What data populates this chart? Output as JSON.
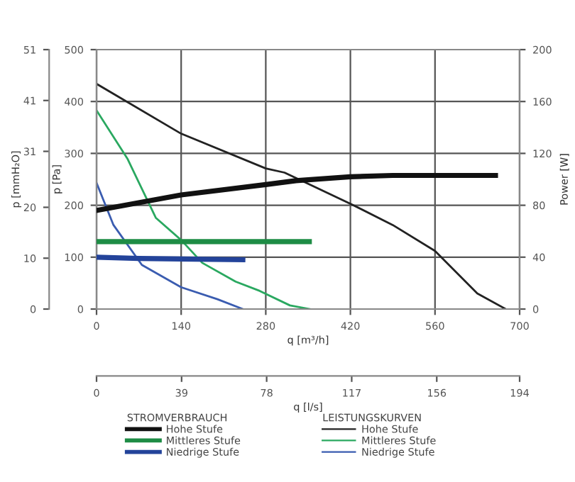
{
  "chart_data": {
    "type": "line",
    "xlabel": "q [m³/h]",
    "ylabel": "p [Pa]",
    "y2label": "Power [W]",
    "y3label": "p [mmH₂O]",
    "x2label": "q [l/s]",
    "xlim": [
      0,
      700
    ],
    "xticks": [
      0,
      140,
      280,
      420,
      560,
      700
    ],
    "ylim": [
      0,
      500
    ],
    "yticks": [
      0,
      100,
      200,
      300,
      400,
      500
    ],
    "y2lim": [
      0,
      200
    ],
    "y2ticks": [
      0,
      40,
      80,
      120,
      160,
      200
    ],
    "y3lim": [
      0,
      51
    ],
    "y3ticks": [
      0,
      10,
      20,
      31,
      41,
      51
    ],
    "x2lim": [
      0,
      194
    ],
    "x2ticks": [
      0,
      39,
      78,
      117,
      156,
      194
    ],
    "grid": true,
    "legend": "bottom",
    "marker": "none",
    "line_style": "solid",
    "annotations": [
      "STROMVERBRAUCH",
      "LEISTUNGSKURVEN"
    ],
    "series": [
      {
        "name": "Hohe Stufe",
        "color": "#111111",
        "axis": "y2",
        "x": [
          0,
          140,
          280,
          330,
          420,
          490,
          560,
          660
        ],
        "values": [
          76,
          88,
          96,
          99,
          102,
          103,
          103,
          103
        ]
      },
      {
        "name": "Mittleres Stufe",
        "color": "#1e8c45",
        "axis": "y2",
        "x": [
          0,
          352
        ],
        "values": [
          52,
          52
        ]
      },
      {
        "name": "Niedrige Stufe",
        "color": "#23439a",
        "axis": "y2",
        "x": [
          0,
          70,
          242
        ],
        "values": [
          40,
          39,
          38
        ]
      },
      {
        "name": "Hohe Stufe",
        "color": "#222222",
        "x": [
          0,
          140,
          280,
          311,
          420,
          490,
          560,
          630,
          677
        ],
        "values": [
          434,
          338,
          271,
          263,
          203,
          162,
          112,
          30,
          0
        ]
      },
      {
        "name": "Mittleres Stufe",
        "color": "#2aa860",
        "x": [
          0,
          51,
          98,
          140,
          175,
          230,
          270,
          320,
          353
        ],
        "values": [
          383,
          290,
          176,
          133,
          89,
          53,
          35,
          7,
          0
        ]
      },
      {
        "name": "Niedrige Stufe",
        "color": "#3a5cb0",
        "x": [
          0,
          28,
          75,
          140,
          200,
          242
        ],
        "values": [
          243,
          162,
          85,
          42,
          19,
          0
        ]
      }
    ]
  }
}
